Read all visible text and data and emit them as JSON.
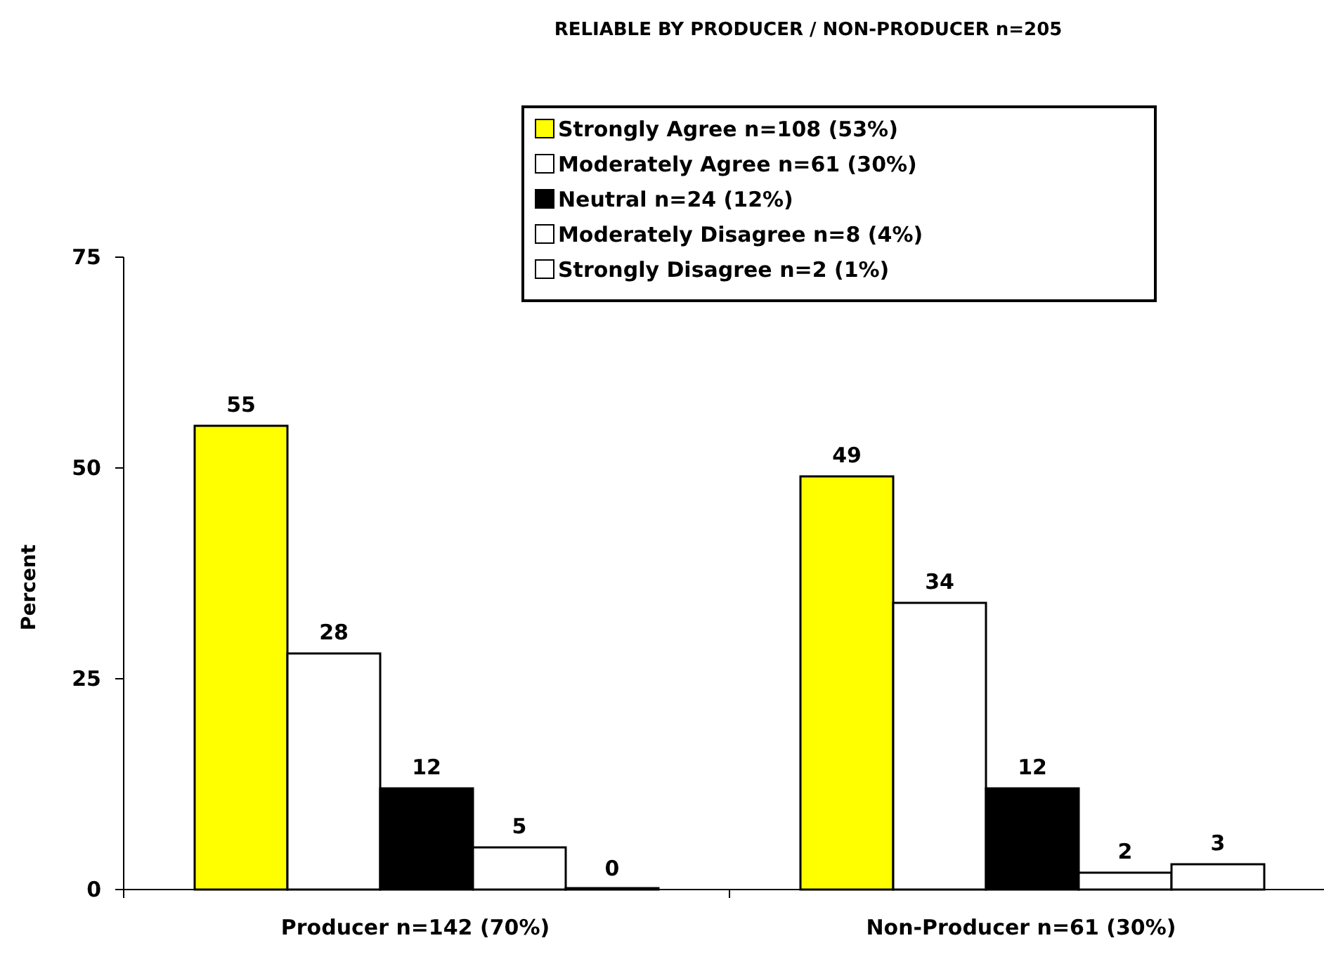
{
  "chart_data": {
    "type": "bar",
    "title": "RELIABLE BY PRODUCER / NON-PRODUCER  n=205",
    "ylabel": "Percent",
    "categories": [
      "Producer  n=142 (70%)",
      "Non-Producer  n=61 (30%)"
    ],
    "series": [
      {
        "name": "Strongly Agree  n=108 (53%)",
        "color": "#ffff00",
        "values": [
          55,
          49
        ]
      },
      {
        "name": "Moderately Agree  n=61 (30%)",
        "color": "#ffffff",
        "values": [
          28,
          34
        ]
      },
      {
        "name": "Neutral  n=24 (12%)",
        "color": "#000000",
        "values": [
          12,
          12
        ]
      },
      {
        "name": "Moderately Disagree  n=8 (4%)",
        "color": "#ffffff",
        "values": [
          5,
          2
        ]
      },
      {
        "name": "Strongly Disagree  n=2 (1%)",
        "color": "#ffffff",
        "values": [
          0,
          3
        ]
      }
    ],
    "ylim": [
      0,
      75
    ],
    "yticks": [
      0,
      25,
      50,
      75
    ],
    "data_labels": true,
    "legend": "top",
    "grid": false
  }
}
